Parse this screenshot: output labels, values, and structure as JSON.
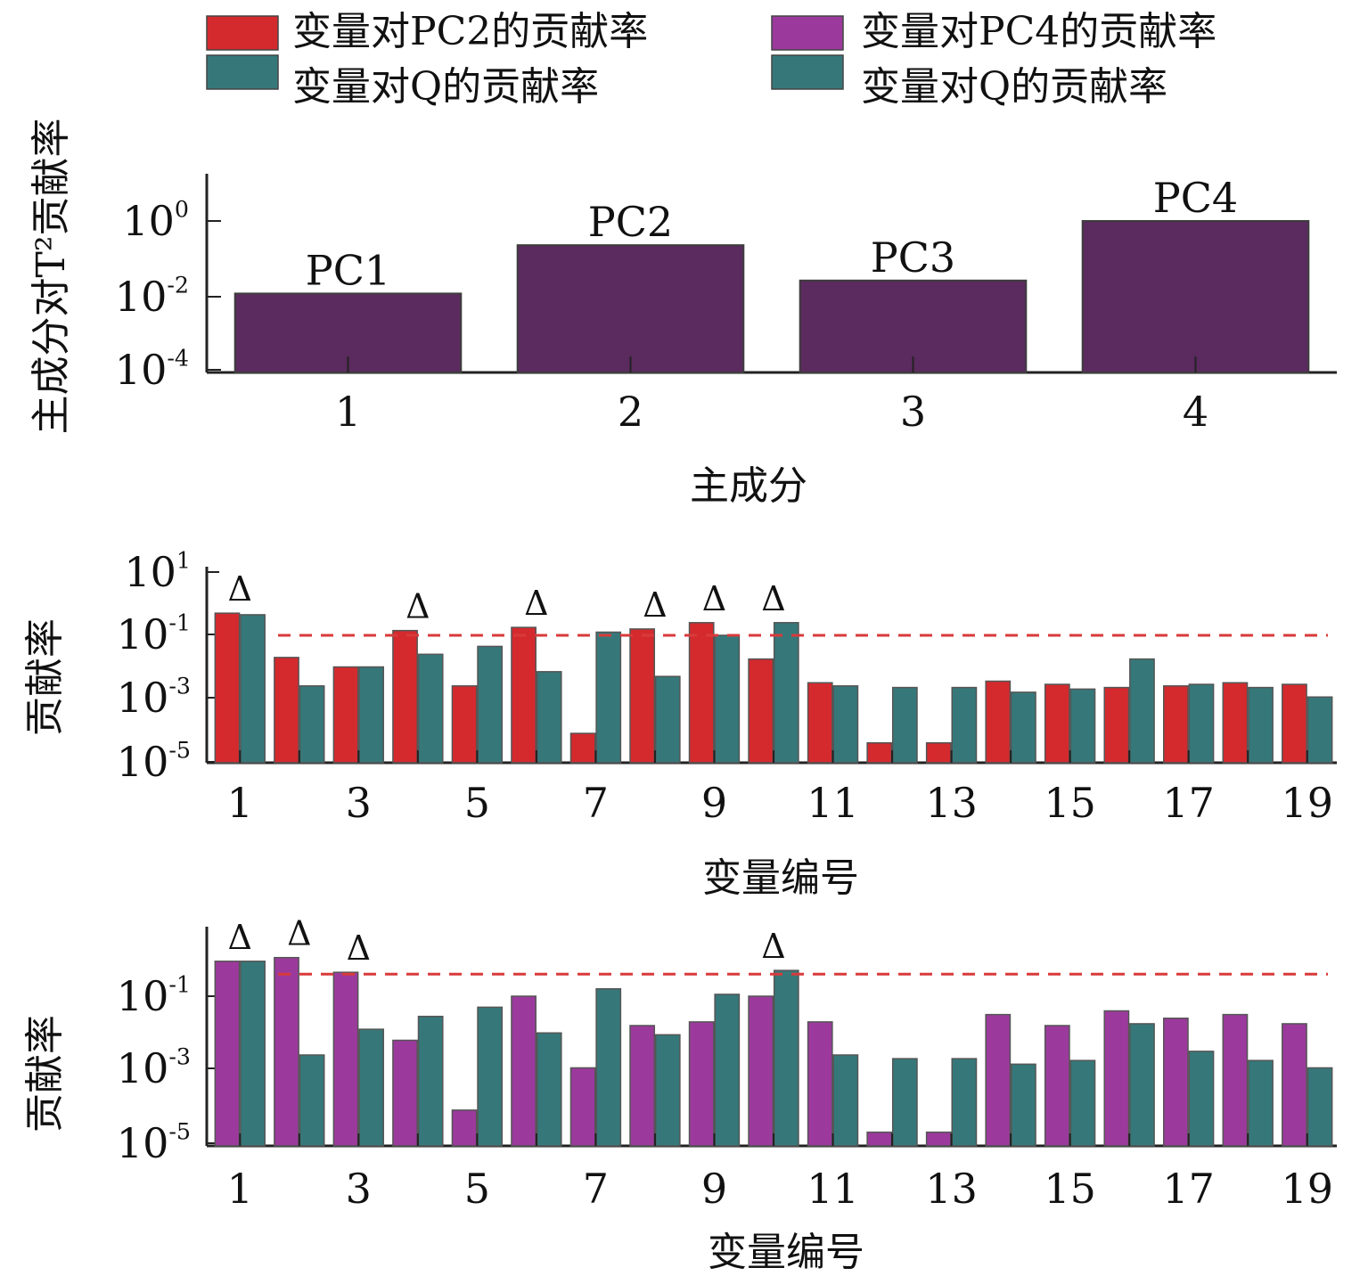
{
  "legend": [
    {
      "label": "变量对PC2的贡献率",
      "color": "#d42a2e"
    },
    {
      "label": "变量对PC4的贡献率",
      "color": "#9b3a9c"
    },
    {
      "label": "变量对Q的贡献率",
      "color": "#36787a"
    },
    {
      "label": "变量对Q的贡献率",
      "color": "#36787a"
    }
  ],
  "chart_data": [
    {
      "type": "bar",
      "scale": "log",
      "ylabel": "主成分对T²贡献率",
      "xlabel": "主成分",
      "categories": [
        "1",
        "2",
        "3",
        "4"
      ],
      "bar_labels": [
        "PC1",
        "PC2",
        "PC3",
        "PC4"
      ],
      "yticks": [
        "10⁰",
        "10⁻²",
        "10⁻⁴"
      ],
      "ylim_exp": [
        -4,
        1.3
      ],
      "color": "#5b2a5e",
      "values_exp": [
        -1.95,
        -0.65,
        -1.6,
        0
      ]
    },
    {
      "type": "bar",
      "scale": "log",
      "ylabel": "贡献率",
      "xlabel": "变量编号",
      "categories": [
        "1",
        "2",
        "3",
        "4",
        "5",
        "6",
        "7",
        "8",
        "9",
        "10",
        "11",
        "12",
        "13",
        "14",
        "15",
        "16",
        "17",
        "18",
        "19"
      ],
      "xticks": [
        "1",
        "3",
        "5",
        "7",
        "9",
        "11",
        "13",
        "15",
        "17",
        "19"
      ],
      "yticks": [
        "10¹",
        "10⁻¹",
        "10⁻³",
        "10⁻⁵"
      ],
      "ylim_exp": [
        -5,
        1
      ],
      "threshold_exp": -1,
      "threshold_color": "#d93a3a",
      "flag_symbol": "Δ",
      "flags": [
        1,
        4,
        6,
        8,
        9,
        10
      ],
      "series": [
        {
          "name": "变量对PC2的贡献率",
          "color": "#d42a2e",
          "values_exp": [
            -0.3,
            -1.7,
            -2.0,
            -0.85,
            -2.6,
            -0.75,
            -4.1,
            -0.8,
            -0.6,
            -1.75,
            -2.5,
            -4.4,
            -4.4,
            -2.45,
            -2.55,
            -2.65,
            -2.6,
            -2.5,
            -2.55
          ]
        },
        {
          "name": "变量对Q的贡献率",
          "color": "#36787a",
          "values_exp": [
            -0.35,
            -2.6,
            -2.0,
            -1.6,
            -1.35,
            -2.15,
            -0.9,
            -2.3,
            -1.0,
            -0.6,
            -2.6,
            -2.65,
            -2.65,
            -2.8,
            -2.7,
            -1.75,
            -2.55,
            -2.65,
            -2.95
          ]
        }
      ]
    },
    {
      "type": "bar",
      "scale": "log",
      "ylabel": "贡献率",
      "xlabel": "变量编号",
      "categories": [
        "1",
        "2",
        "3",
        "4",
        "5",
        "6",
        "7",
        "8",
        "9",
        "10",
        "11",
        "12",
        "13",
        "14",
        "15",
        "16",
        "17",
        "18",
        "19"
      ],
      "xticks": [
        "1",
        "3",
        "5",
        "7",
        "9",
        "11",
        "13",
        "15",
        "17",
        "19"
      ],
      "yticks": [
        "10⁻¹",
        "10⁻³",
        "10⁻⁵"
      ],
      "ylim_exp": [
        -5.2,
        0.75
      ],
      "threshold_exp": -0.4,
      "threshold_color": "#d93a3a",
      "flag_symbol": "Δ",
      "flags": [
        1,
        2,
        3,
        10
      ],
      "series": [
        {
          "name": "变量对PC4的贡献率",
          "color": "#9b3a9c",
          "values_exp": [
            -0.05,
            0.05,
            -0.35,
            -2.2,
            -4.1,
            -1.0,
            -2.95,
            -1.8,
            -1.7,
            -1.0,
            -1.7,
            -4.7,
            -4.7,
            -1.5,
            -1.8,
            -1.4,
            -1.6,
            -1.5,
            -1.75
          ]
        },
        {
          "name": "变量对Q的贡献率",
          "color": "#36787a",
          "values_exp": [
            -0.05,
            -2.6,
            -1.9,
            -1.55,
            -1.3,
            -2.0,
            -0.8,
            -2.05,
            -0.95,
            -0.3,
            -2.6,
            -2.7,
            -2.7,
            -2.85,
            -2.75,
            -1.75,
            -2.5,
            -2.75,
            -2.95
          ]
        }
      ]
    }
  ]
}
